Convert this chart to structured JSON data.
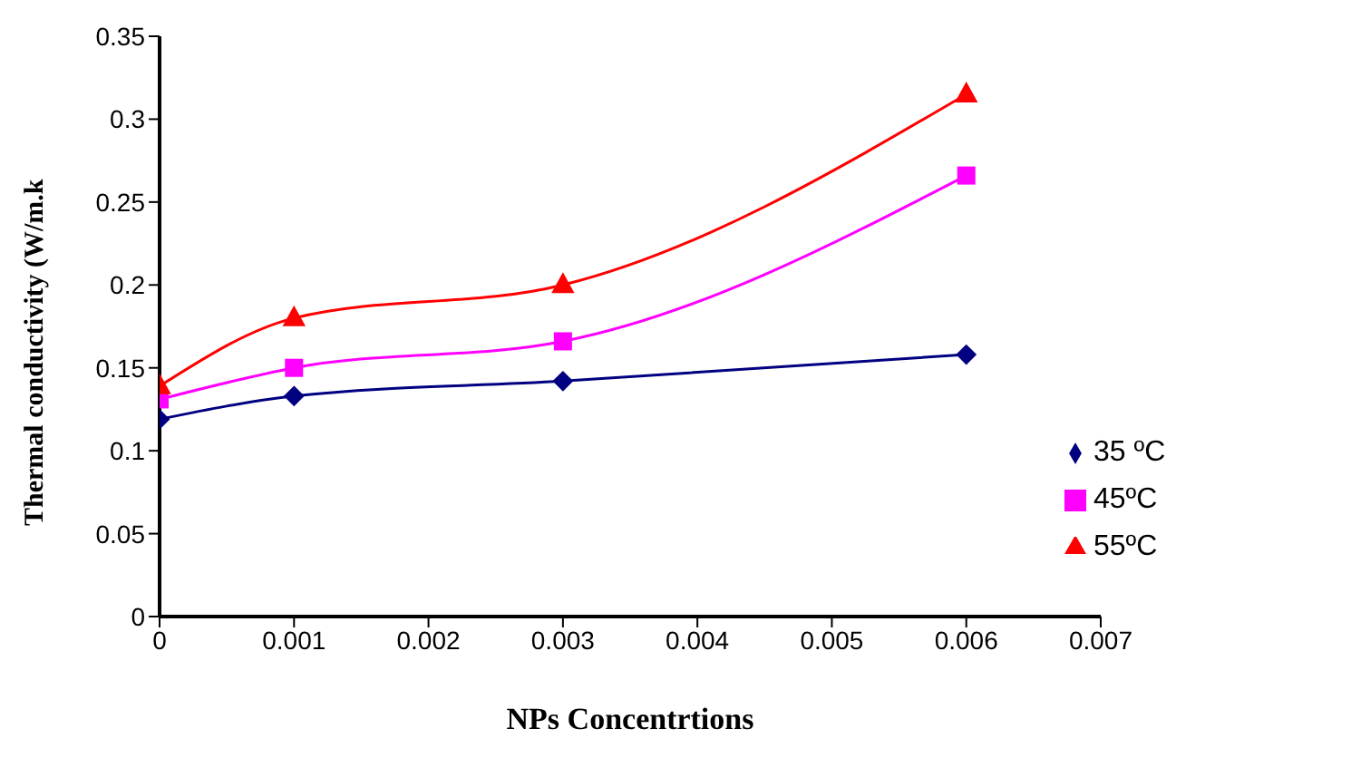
{
  "chart_data": {
    "type": "line",
    "xlabel": "NPs Concentrtions",
    "ylabel": "Thermal conductivity (W/m.k",
    "x": [
      0,
      0.001,
      0.003,
      0.006
    ],
    "series": [
      {
        "name": "35 ºC",
        "color": "#000080",
        "marker": "diamond",
        "values": [
          0.119,
          0.133,
          0.142,
          0.158
        ]
      },
      {
        "name": "45ºC",
        "color": "#ff00ff",
        "marker": "square",
        "values": [
          0.131,
          0.15,
          0.166,
          0.266
        ]
      },
      {
        "name": "55ºC",
        "color": "#ff0000",
        "marker": "triangle",
        "values": [
          0.139,
          0.18,
          0.2,
          0.315
        ]
      }
    ],
    "xlim": [
      0,
      0.007
    ],
    "xticks": [
      0,
      0.001,
      0.002,
      0.003,
      0.004,
      0.005,
      0.006,
      0.007
    ],
    "ylim": [
      0,
      0.35
    ],
    "yticks": [
      0,
      0.05,
      0.1,
      0.15,
      0.2,
      0.25,
      0.3,
      0.35
    ],
    "grid": false,
    "legend": "bottom right"
  }
}
